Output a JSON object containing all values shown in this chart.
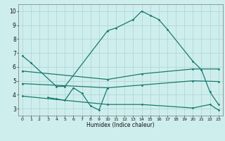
{
  "xlabel": "Humidex (Indice chaleur)",
  "bg_color": "#ceeeed",
  "grid_color": "#aad4d2",
  "line_color": "#1a7a6e",
  "xlim": [
    -0.5,
    23.5
  ],
  "ylim": [
    2.5,
    10.5
  ],
  "xticks": [
    0,
    1,
    2,
    3,
    4,
    5,
    6,
    7,
    8,
    9,
    10,
    11,
    12,
    13,
    14,
    15,
    16,
    17,
    18,
    19,
    20,
    21,
    22,
    23
  ],
  "yticks": [
    3,
    4,
    5,
    6,
    7,
    8,
    9,
    10
  ],
  "line1_x": [
    0,
    1,
    4,
    5,
    10,
    11,
    13,
    14,
    15,
    16,
    17,
    20,
    21,
    22,
    23
  ],
  "line1_y": [
    6.8,
    6.3,
    4.6,
    4.6,
    8.6,
    8.8,
    9.4,
    10.0,
    9.7,
    9.4,
    8.7,
    6.4,
    5.8,
    4.2,
    3.3
  ],
  "line2_x": [
    3,
    4,
    5,
    6,
    7,
    8,
    9,
    10
  ],
  "line2_y": [
    3.8,
    3.7,
    3.6,
    4.5,
    4.1,
    3.2,
    2.9,
    4.5
  ],
  "line3_x": [
    0,
    10,
    14,
    20,
    23
  ],
  "line3_y": [
    5.7,
    5.1,
    5.5,
    5.85,
    5.85
  ],
  "line4_x": [
    0,
    10,
    14,
    20,
    23
  ],
  "line4_y": [
    4.8,
    4.5,
    4.7,
    5.0,
    4.95
  ],
  "line5_x": [
    0,
    10,
    14,
    20,
    22,
    23
  ],
  "line5_y": [
    3.9,
    3.3,
    3.3,
    3.05,
    3.3,
    2.9
  ]
}
